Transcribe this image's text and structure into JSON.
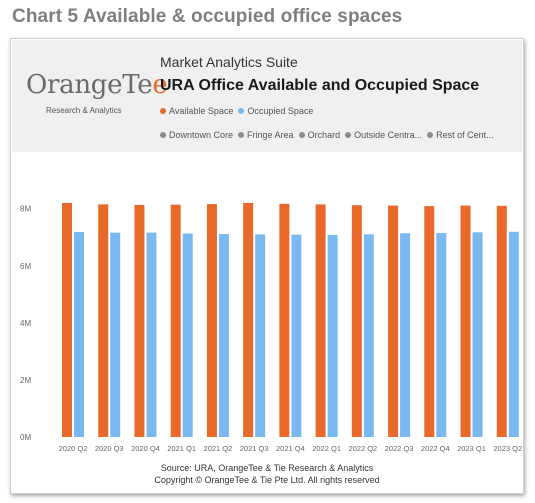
{
  "caption": "Chart 5 Available & occupied office spaces",
  "logo": {
    "text_main": "OrangeTee",
    "text_sub": "Research & Analytics"
  },
  "header": {
    "suite": "Market Analytics Suite",
    "title": "URA Office Available and Occupied Space"
  },
  "legend": {
    "series": [
      {
        "label": "Available Space",
        "color": "#e8692a"
      },
      {
        "label": "Occupied Space",
        "color": "#7ab8f0"
      }
    ],
    "filters": [
      "Downtown Core",
      "Fringe Area",
      "Orchard",
      "Outside Centra...",
      "Rest of Cent..."
    ],
    "filter_color": "#8c8c8c"
  },
  "chart_data": {
    "type": "bar",
    "categories": [
      "2020 Q2",
      "2020 Q3",
      "2020 Q4",
      "2021 Q1",
      "2021 Q2",
      "2021 Q3",
      "2021 Q4",
      "2022 Q1",
      "2022 Q2",
      "2022 Q3",
      "2022 Q4",
      "2023 Q1",
      "2023 Q2"
    ],
    "series": [
      {
        "name": "Available Space",
        "color": "#e8692a",
        "values": [
          8.2,
          8.15,
          8.13,
          8.14,
          8.16,
          8.2,
          8.17,
          8.15,
          8.12,
          8.11,
          8.09,
          8.11,
          8.1
        ]
      },
      {
        "name": "Occupied Space",
        "color": "#7ab8f0",
        "values": [
          7.18,
          7.16,
          7.16,
          7.13,
          7.11,
          7.1,
          7.09,
          7.08,
          7.1,
          7.14,
          7.15,
          7.17,
          7.19
        ]
      }
    ],
    "unit": "M",
    "yticks": [
      "0M",
      "2M",
      "4M",
      "6M",
      "8M"
    ],
    "ylim": [
      0,
      9.6
    ],
    "legend_position": "top",
    "grid": false
  },
  "footer": {
    "source": "Source: URA, OrangeTee & Tie Research & Analytics",
    "copyright": "Copyright © OrangeTee & Tie Pte Ltd. All rights reserved"
  }
}
